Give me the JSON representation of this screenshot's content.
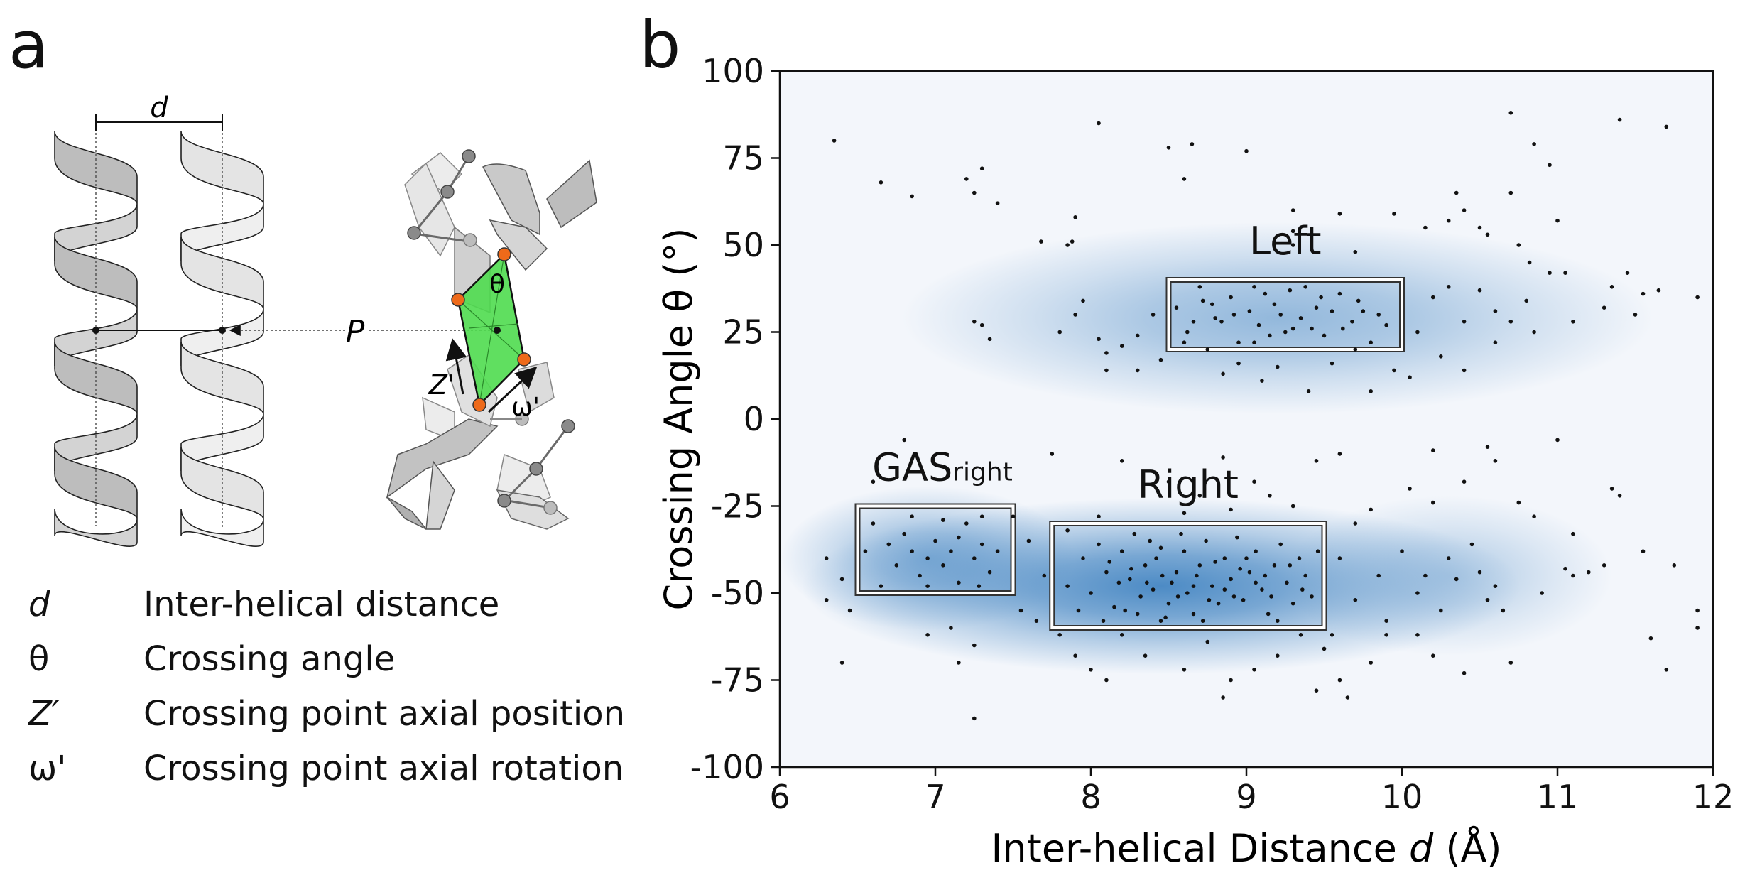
{
  "panels": {
    "a_letter": "a",
    "b_letter": "b"
  },
  "schematic": {
    "d_label": "d",
    "p_label": "P",
    "theta_label": "θ",
    "z_label": "Z'",
    "omega_label": "ω'"
  },
  "legend": [
    {
      "symbol": "d",
      "description": "Inter-helical distance"
    },
    {
      "symbol": "θ",
      "description": "Crossing angle"
    },
    {
      "symbol": "Z′",
      "description": "Crossing point axial position"
    },
    {
      "symbol": "ω'",
      "description": "Crossing point axial rotation"
    }
  ],
  "colors": {
    "density": "#3a7fbf",
    "green": "#4fdc4f",
    "orange": "#ee6a1a",
    "helix_dark": "#b8b8b8",
    "helix_light": "#e2e2e2"
  },
  "chart_data": {
    "type": "scatter",
    "xlabel": "Inter-helical Distance d (Å)",
    "xlabel_main": "Inter-helical Distance ",
    "xlabel_var": "d",
    "xlabel_unit": " (Å)",
    "ylabel": "Crossing Angle θ (°)",
    "xlim": [
      6,
      12
    ],
    "ylim": [
      -100,
      100
    ],
    "xticks": [
      6,
      7,
      8,
      9,
      10,
      11,
      12
    ],
    "yticks": [
      100,
      75,
      50,
      25,
      0,
      -25,
      -50,
      -75,
      -100
    ],
    "grid": false,
    "regions": [
      {
        "label": "Left",
        "x": [
          8.5,
          10.0
        ],
        "y": [
          20,
          40
        ]
      },
      {
        "label": "Right",
        "x": [
          7.75,
          9.5
        ],
        "y": [
          -60,
          -30
        ]
      },
      {
        "label": "GASright",
        "label_main": "GAS",
        "label_sub": "right",
        "x": [
          6.5,
          7.5
        ],
        "y": [
          -50,
          -25
        ]
      }
    ],
    "density": [
      {
        "cx": 9.2,
        "cy": 29,
        "sx": 1.15,
        "sy": 12,
        "w": 0.55
      },
      {
        "cx": 8.45,
        "cy": -48,
        "sx": 1.1,
        "sy": 11,
        "w": 0.95
      },
      {
        "cx": 6.95,
        "cy": -40,
        "sx": 0.45,
        "sy": 9,
        "w": 0.6
      },
      {
        "cx": 10.3,
        "cy": -45,
        "sx": 0.5,
        "sy": 10,
        "w": 0.35
      }
    ],
    "points": [
      [
        6.35,
        80
      ],
      [
        6.65,
        68
      ],
      [
        6.85,
        64
      ],
      [
        7.2,
        69
      ],
      [
        7.3,
        72
      ],
      [
        7.25,
        65
      ],
      [
        7.4,
        62
      ],
      [
        7.68,
        51
      ],
      [
        7.85,
        50
      ],
      [
        7.9,
        58
      ],
      [
        7.88,
        51
      ],
      [
        8.05,
        85
      ],
      [
        8.5,
        78
      ],
      [
        8.65,
        79
      ],
      [
        8.6,
        69
      ],
      [
        9.0,
        77
      ],
      [
        9.3,
        60
      ],
      [
        9.3,
        54
      ],
      [
        9.3,
        50
      ],
      [
        9.6,
        59
      ],
      [
        9.7,
        48
      ],
      [
        9.95,
        59
      ],
      [
        10.15,
        55
      ],
      [
        10.3,
        57
      ],
      [
        10.35,
        65
      ],
      [
        10.4,
        60
      ],
      [
        10.5,
        55
      ],
      [
        10.55,
        53
      ],
      [
        10.7,
        65
      ],
      [
        10.95,
        73
      ],
      [
        10.85,
        79
      ],
      [
        11.0,
        57
      ],
      [
        10.75,
        50
      ],
      [
        10.82,
        45
      ],
      [
        10.95,
        42
      ],
      [
        11.4,
        86
      ],
      [
        11.7,
        84
      ],
      [
        10.7,
        88
      ],
      [
        10.3,
        38
      ],
      [
        10.5,
        37
      ],
      [
        10.2,
        35
      ],
      [
        10.8,
        34
      ],
      [
        11.1,
        28
      ],
      [
        11.3,
        32
      ],
      [
        11.5,
        30
      ],
      [
        11.9,
        35
      ],
      [
        11.55,
        36
      ],
      [
        11.45,
        42
      ],
      [
        11.65,
        37
      ],
      [
        11.05,
        42
      ],
      [
        11.35,
        38
      ],
      [
        7.25,
        28
      ],
      [
        7.3,
        27
      ],
      [
        7.35,
        23
      ],
      [
        7.8,
        25
      ],
      [
        7.9,
        30
      ],
      [
        7.95,
        34
      ],
      [
        8.05,
        23
      ],
      [
        8.1,
        14
      ],
      [
        8.2,
        21
      ],
      [
        8.1,
        19
      ],
      [
        8.3,
        24
      ],
      [
        8.4,
        30
      ],
      [
        8.45,
        17
      ],
      [
        8.3,
        14
      ],
      [
        8.75,
        20
      ],
      [
        8.85,
        13
      ],
      [
        9.1,
        11
      ],
      [
        9.25,
        25
      ],
      [
        8.55,
        32
      ],
      [
        8.62,
        25
      ],
      [
        8.7,
        38
      ],
      [
        8.78,
        33
      ],
      [
        8.84,
        28
      ],
      [
        8.9,
        35
      ],
      [
        8.95,
        22
      ],
      [
        9.02,
        31
      ],
      [
        9.08,
        27
      ],
      [
        9.12,
        36
      ],
      [
        9.18,
        33
      ],
      [
        9.22,
        30
      ],
      [
        9.3,
        26
      ],
      [
        9.38,
        38
      ],
      [
        9.45,
        32
      ],
      [
        9.5,
        24
      ],
      [
        9.55,
        31
      ],
      [
        9.6,
        36
      ],
      [
        9.68,
        28
      ],
      [
        9.72,
        34
      ],
      [
        9.8,
        22
      ],
      [
        9.85,
        30
      ],
      [
        9.9,
        27
      ],
      [
        9.55,
        16
      ],
      [
        9.7,
        20
      ],
      [
        9.4,
        8
      ],
      [
        9.8,
        8
      ],
      [
        9.95,
        14
      ],
      [
        10.05,
        12
      ],
      [
        10.25,
        18
      ],
      [
        10.4,
        14
      ],
      [
        10.6,
        22
      ],
      [
        10.7,
        28
      ],
      [
        10.85,
        25
      ],
      [
        10.6,
        31
      ],
      [
        10.1,
        25
      ],
      [
        10.4,
        28
      ],
      [
        8.66,
        28
      ],
      [
        8.72,
        34
      ],
      [
        8.8,
        29
      ],
      [
        8.92,
        30
      ],
      [
        9.05,
        38
      ],
      [
        9.15,
        24
      ],
      [
        9.28,
        37
      ],
      [
        9.35,
        29
      ],
      [
        9.42,
        26
      ],
      [
        9.48,
        35
      ],
      [
        9.62,
        26
      ],
      [
        9.75,
        31
      ],
      [
        9.05,
        22
      ],
      [
        8.6,
        22
      ],
      [
        9.2,
        15
      ],
      [
        8.95,
        16
      ],
      [
        7.75,
        -10
      ],
      [
        8.05,
        -28
      ],
      [
        8.2,
        -12
      ],
      [
        8.5,
        -18
      ],
      [
        8.7,
        -22
      ],
      [
        8.85,
        -11
      ],
      [
        8.6,
        -27
      ],
      [
        8.9,
        -26
      ],
      [
        9.05,
        -18
      ],
      [
        9.15,
        -22
      ],
      [
        9.3,
        -25
      ],
      [
        9.45,
        -12
      ],
      [
        9.6,
        -10
      ],
      [
        9.8,
        -26
      ],
      [
        10.05,
        -20
      ],
      [
        10.2,
        -24
      ],
      [
        10.4,
        -18
      ],
      [
        10.6,
        -12
      ],
      [
        10.75,
        -24
      ],
      [
        10.85,
        -28
      ],
      [
        11.1,
        -33
      ],
      [
        10.2,
        -9
      ],
      [
        10.55,
        -8
      ],
      [
        11.0,
        -6
      ],
      [
        11.35,
        -20
      ],
      [
        11.4,
        -22
      ],
      [
        11.55,
        -38
      ],
      [
        11.75,
        -42
      ],
      [
        11.9,
        -55
      ],
      [
        11.9,
        -60
      ],
      [
        11.6,
        -63
      ],
      [
        11.7,
        -72
      ],
      [
        11.1,
        -45
      ],
      [
        11.2,
        -44
      ],
      [
        11.3,
        -42
      ],
      [
        10.9,
        -50
      ],
      [
        11.05,
        -43
      ],
      [
        10.7,
        -70
      ],
      [
        10.4,
        -73
      ],
      [
        10.25,
        -55
      ],
      [
        10.1,
        -50
      ],
      [
        10.3,
        -40
      ],
      [
        10.45,
        -36
      ],
      [
        10.5,
        -44
      ],
      [
        10.55,
        -52
      ],
      [
        10.6,
        -48
      ],
      [
        10.35,
        -46
      ],
      [
        10.65,
        -55
      ],
      [
        10.15,
        -45
      ],
      [
        10.0,
        -38
      ],
      [
        9.85,
        -45
      ],
      [
        9.7,
        -52
      ],
      [
        9.6,
        -40
      ],
      [
        9.7,
        -30
      ],
      [
        9.9,
        -62
      ],
      [
        9.8,
        -70
      ],
      [
        9.6,
        -75
      ],
      [
        9.55,
        -62
      ],
      [
        9.45,
        -78
      ],
      [
        9.65,
        -80
      ],
      [
        9.9,
        -58
      ],
      [
        10.1,
        -62
      ],
      [
        10.2,
        -68
      ],
      [
        6.3,
        -40
      ],
      [
        6.3,
        -52
      ],
      [
        6.4,
        -46
      ],
      [
        6.45,
        -55
      ],
      [
        6.4,
        -70
      ],
      [
        6.55,
        -38
      ],
      [
        6.6,
        -30
      ],
      [
        6.65,
        -48
      ],
      [
        6.7,
        -36
      ],
      [
        6.75,
        -42
      ],
      [
        6.8,
        -33
      ],
      [
        6.85,
        -38
      ],
      [
        6.9,
        -45
      ],
      [
        6.95,
        -40
      ],
      [
        7.0,
        -35
      ],
      [
        7.05,
        -42
      ],
      [
        7.1,
        -38
      ],
      [
        7.15,
        -47
      ],
      [
        7.2,
        -30
      ],
      [
        7.25,
        -40
      ],
      [
        7.3,
        -36
      ],
      [
        7.35,
        -44
      ],
      [
        7.4,
        -38
      ],
      [
        7.05,
        -29
      ],
      [
        6.95,
        -48
      ],
      [
        6.85,
        -28
      ],
      [
        7.15,
        -34
      ],
      [
        7.28,
        -48
      ],
      [
        7.1,
        -60
      ],
      [
        7.25,
        -65
      ],
      [
        7.15,
        -70
      ],
      [
        6.95,
        -62
      ],
      [
        7.3,
        -28
      ],
      [
        7.5,
        -28
      ],
      [
        7.6,
        -35
      ],
      [
        7.7,
        -45
      ],
      [
        7.55,
        -55
      ],
      [
        7.65,
        -58
      ],
      [
        7.85,
        -48
      ],
      [
        6.8,
        -6
      ],
      [
        6.6,
        -18
      ],
      [
        7.8,
        -62
      ],
      [
        7.9,
        -68
      ],
      [
        8.0,
        -72
      ],
      [
        8.1,
        -75
      ],
      [
        8.2,
        -62
      ],
      [
        8.35,
        -68
      ],
      [
        8.45,
        -58
      ],
      [
        8.6,
        -72
      ],
      [
        8.75,
        -64
      ],
      [
        8.9,
        -75
      ],
      [
        9.05,
        -72
      ],
      [
        9.2,
        -68
      ],
      [
        9.35,
        -62
      ],
      [
        8.85,
        -80
      ],
      [
        7.25,
        -86
      ],
      [
        9.5,
        -66
      ],
      [
        7.85,
        -32
      ],
      [
        7.95,
        -40
      ],
      [
        8.0,
        -50
      ],
      [
        8.05,
        -36
      ],
      [
        8.1,
        -44
      ],
      [
        8.15,
        -54
      ],
      [
        8.2,
        -38
      ],
      [
        8.25,
        -46
      ],
      [
        8.28,
        -33
      ],
      [
        8.3,
        -56
      ],
      [
        8.35,
        -42
      ],
      [
        8.4,
        -49
      ],
      [
        8.45,
        -37
      ],
      [
        8.5,
        -53
      ],
      [
        8.55,
        -44
      ],
      [
        8.6,
        -38
      ],
      [
        8.62,
        -50
      ],
      [
        8.66,
        -56
      ],
      [
        8.7,
        -42
      ],
      [
        8.74,
        -35
      ],
      [
        8.78,
        -48
      ],
      [
        8.82,
        -53
      ],
      [
        8.86,
        -40
      ],
      [
        8.9,
        -46
      ],
      [
        8.94,
        -34
      ],
      [
        8.98,
        -52
      ],
      [
        9.02,
        -44
      ],
      [
        9.06,
        -38
      ],
      [
        9.1,
        -49
      ],
      [
        9.14,
        -56
      ],
      [
        9.18,
        -42
      ],
      [
        9.22,
        -36
      ],
      [
        9.26,
        -47
      ],
      [
        9.3,
        -53
      ],
      [
        9.34,
        -40
      ],
      [
        9.38,
        -45
      ],
      [
        9.42,
        -51
      ],
      [
        9.46,
        -38
      ],
      [
        8.18,
        -47
      ],
      [
        8.32,
        -51
      ],
      [
        8.42,
        -40
      ],
      [
        8.52,
        -47
      ],
      [
        8.68,
        -45
      ],
      [
        8.8,
        -41
      ],
      [
        8.92,
        -51
      ],
      [
        9.0,
        -40
      ],
      [
        9.12,
        -45
      ],
      [
        9.28,
        -42
      ],
      [
        8.22,
        -55
      ],
      [
        8.48,
        -57
      ],
      [
        8.58,
        -33
      ],
      [
        8.08,
        -58
      ],
      [
        7.92,
        -55
      ],
      [
        8.38,
        -35
      ],
      [
        8.72,
        -58
      ],
      [
        9.2,
        -58
      ],
      [
        8.12,
        -41
      ],
      [
        8.36,
        -47
      ],
      [
        8.56,
        -51
      ],
      [
        8.76,
        -52
      ],
      [
        8.96,
        -43
      ],
      [
        9.16,
        -51
      ],
      [
        9.36,
        -49
      ],
      [
        8.26,
        -43
      ],
      [
        8.46,
        -45
      ],
      [
        8.66,
        -48
      ],
      [
        8.86,
        -49
      ],
      [
        9.06,
        -47
      ]
    ]
  }
}
